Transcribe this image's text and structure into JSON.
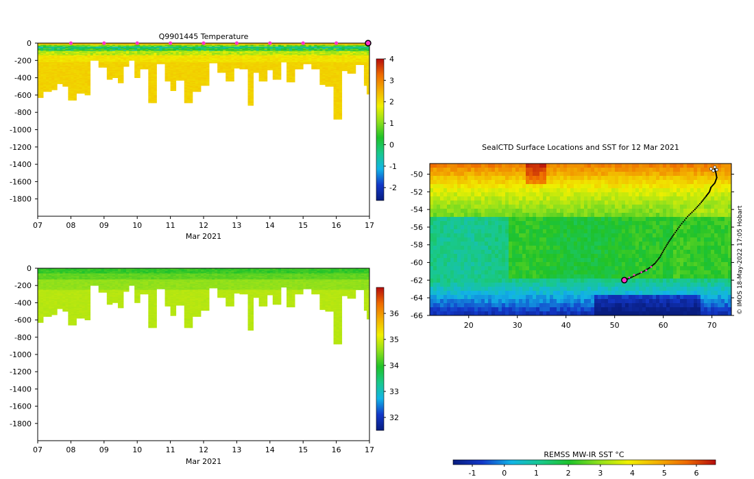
{
  "colors": {
    "marker": "#ff33cc",
    "track": "#000000",
    "ramp_temp": [
      "#081d80",
      "#1338c8",
      "#12b4e6",
      "#19c88c",
      "#1fc22a",
      "#8fe01c",
      "#f0f000",
      "#f3b000",
      "#ee6a00",
      "#b40d0d"
    ],
    "ramp_sal": [
      "#081d80",
      "#1338c8",
      "#12b4e6",
      "#19c88c",
      "#1fc22a",
      "#8fe01c",
      "#f0f000",
      "#f3b000",
      "#ee6a00",
      "#b40d0d"
    ]
  },
  "chart_data": [
    {
      "type": "heatmap",
      "name": "temperature-section",
      "title": "Q9901445  Temperature",
      "xlabel": "Mar 2021",
      "x_ticks": [
        "07",
        "08",
        "09",
        "10",
        "11",
        "12",
        "13",
        "14",
        "15",
        "16",
        "17"
      ],
      "xlim": [
        7,
        17
      ],
      "ylim": [
        -2000,
        0
      ],
      "y_ticks": [
        0,
        -200,
        -400,
        -600,
        -800,
        -1000,
        -1200,
        -1400,
        -1600,
        -1800
      ],
      "y_tick_labels": [
        "0",
        "-200",
        "-400",
        "-600",
        "-800",
        "-1000",
        "-1200",
        "-1400",
        "-1600",
        "-1800"
      ],
      "colorbar": {
        "min": -2.6,
        "max": 4,
        "ticks": [
          -2,
          -1,
          0,
          1,
          2,
          3,
          4
        ],
        "tick_labels": [
          "-2",
          "-1",
          "0",
          "1",
          "2",
          "3",
          "4"
        ]
      },
      "surface_marker_days": [
        8,
        9,
        10,
        11,
        12,
        13,
        14,
        15,
        16,
        17
      ],
      "profile_max_depth": [
        [
          7.1,
          -630
        ],
        [
          7.3,
          -560
        ],
        [
          7.5,
          -540
        ],
        [
          7.65,
          -470
        ],
        [
          7.8,
          -500
        ],
        [
          8.1,
          -660
        ],
        [
          8.3,
          -580
        ],
        [
          8.5,
          -600
        ],
        [
          8.7,
          -200
        ],
        [
          9.0,
          -280
        ],
        [
          9.15,
          -420
        ],
        [
          9.3,
          -400
        ],
        [
          9.5,
          -460
        ],
        [
          9.7,
          -270
        ],
        [
          9.85,
          -200
        ],
        [
          10.0,
          -400
        ],
        [
          10.2,
          -300
        ],
        [
          10.45,
          -690
        ],
        [
          10.7,
          -240
        ],
        [
          10.95,
          -440
        ],
        [
          11.1,
          -550
        ],
        [
          11.3,
          -430
        ],
        [
          11.6,
          -690
        ],
        [
          11.8,
          -560
        ],
        [
          12.0,
          -490
        ],
        [
          12.35,
          -230
        ],
        [
          12.5,
          -340
        ],
        [
          12.8,
          -440
        ],
        [
          13.0,
          -290
        ],
        [
          13.2,
          -300
        ],
        [
          13.4,
          -720
        ],
        [
          13.6,
          -340
        ],
        [
          13.8,
          -440
        ],
        [
          14.0,
          -310
        ],
        [
          14.2,
          -420
        ],
        [
          14.45,
          -220
        ],
        [
          14.6,
          -450
        ],
        [
          14.85,
          -300
        ],
        [
          15.1,
          -240
        ],
        [
          15.35,
          -300
        ],
        [
          15.6,
          -480
        ],
        [
          15.8,
          -500
        ],
        [
          16.0,
          -880
        ],
        [
          16.25,
          -320
        ],
        [
          16.45,
          -350
        ],
        [
          16.7,
          -250
        ],
        [
          16.9,
          -490
        ],
        [
          17.0,
          -590
        ]
      ]
    },
    {
      "type": "heatmap",
      "name": "salinity-section",
      "title": "",
      "xlabel": "Mar 2021",
      "x_ticks": [
        "07",
        "08",
        "09",
        "10",
        "11",
        "12",
        "13",
        "14",
        "15",
        "16",
        "17"
      ],
      "xlim": [
        7,
        17
      ],
      "ylim": [
        -2000,
        0
      ],
      "y_ticks": [
        0,
        -200,
        -400,
        -600,
        -800,
        -1000,
        -1200,
        -1400,
        -1600,
        -1800
      ],
      "y_tick_labels": [
        "0",
        "-200",
        "-400",
        "-600",
        "-800",
        "-1000",
        "-1200",
        "-1400",
        "-1600",
        "-1800"
      ],
      "colorbar": {
        "min": 31.5,
        "max": 37,
        "ticks": [
          32,
          33,
          34,
          35,
          36
        ],
        "tick_labels": [
          "32",
          "33",
          "34",
          "35",
          "36"
        ]
      }
    },
    {
      "type": "heatmap",
      "name": "sst-map",
      "title": "SealCTD Surface Locations and SST for 12 Mar 2021",
      "xlim": [
        12,
        74
      ],
      "ylim": [
        -66,
        -48.8
      ],
      "x_ticks": [
        20,
        30,
        40,
        50,
        60,
        70
      ],
      "x_tick_labels": [
        "20",
        "30",
        "40",
        "50",
        "60",
        "70"
      ],
      "y_ticks": [
        -50,
        -52,
        -54,
        -56,
        -58,
        -60,
        -62,
        -64,
        -66
      ],
      "y_tick_labels": [
        "-50",
        "-52",
        "-54",
        "-56",
        "-58",
        "-60",
        "-62",
        "-64",
        "-66"
      ],
      "track_lonlat": [
        [
          70.5,
          -49.3
        ],
        [
          70.8,
          -49.8
        ],
        [
          71.0,
          -50.4
        ],
        [
          70.6,
          -51.0
        ],
        [
          69.8,
          -51.5
        ],
        [
          69.5,
          -52.0
        ],
        [
          68.8,
          -52.5
        ],
        [
          67.8,
          -53.2
        ],
        [
          66.5,
          -54.0
        ],
        [
          65.0,
          -54.8
        ],
        [
          63.5,
          -55.8
        ],
        [
          62.2,
          -56.8
        ],
        [
          61.2,
          -57.6
        ],
        [
          60.2,
          -58.5
        ],
        [
          59.3,
          -59.4
        ],
        [
          58.3,
          -60.1
        ],
        [
          57.2,
          -60.6
        ],
        [
          56.0,
          -61.0
        ],
        [
          54.5,
          -61.4
        ],
        [
          53.0,
          -61.8
        ],
        [
          52.0,
          -62.0
        ]
      ],
      "magenta_segment_lonlat": [
        [
          57.5,
          -60.5
        ],
        [
          56.5,
          -60.9
        ],
        [
          55.5,
          -61.1
        ],
        [
          54.0,
          -61.4
        ],
        [
          53.0,
          -61.7
        ]
      ],
      "end_marker_lonlat": [
        52.0,
        -62.0
      ],
      "colorbar": {
        "label": "REMSS MW-IR SST °C",
        "min": -1.6,
        "max": 6.6,
        "ticks": [
          -1,
          0,
          1,
          2,
          3,
          4,
          5,
          6
        ],
        "tick_labels": [
          "-1",
          "0",
          "1",
          "2",
          "3",
          "4",
          "5",
          "6"
        ]
      }
    }
  ],
  "credit": "© IMOS 18-May-2022 17:05 Hobart"
}
